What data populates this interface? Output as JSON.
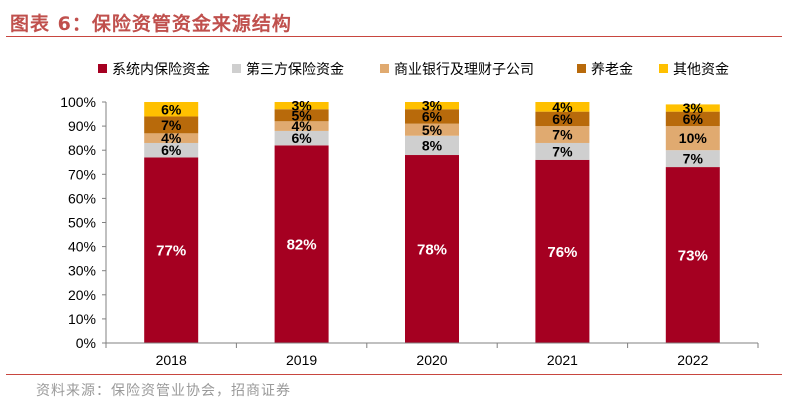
{
  "figure": {
    "title": "图表 6：保险资管资金来源结构",
    "source": "资料来源：保险资管业协会，招商证券"
  },
  "chart_data": {
    "type": "bar",
    "stacked": true,
    "categories": [
      "2018",
      "2019",
      "2020",
      "2021",
      "2022"
    ],
    "ylim": [
      0,
      100
    ],
    "yticks": [
      "0%",
      "10%",
      "20%",
      "30%",
      "40%",
      "50%",
      "60%",
      "70%",
      "80%",
      "90%",
      "100%"
    ],
    "legend_position": "top",
    "series": [
      {
        "name": "系统内保险资金",
        "color": "#a50021",
        "values": [
          77,
          82,
          78,
          76,
          73
        ],
        "labels": [
          "77%",
          "82%",
          "78%",
          "76%",
          "73%"
        ],
        "label_color": "#ffffff"
      },
      {
        "name": "第三方保险资金",
        "color": "#cfcfcf",
        "values": [
          6,
          6,
          8,
          7,
          7
        ],
        "labels": [
          "6%",
          "6%",
          "8%",
          "7%",
          "7%"
        ],
        "label_color": "#000000"
      },
      {
        "name": "商业银行及理财子公司",
        "color": "#e0aa70",
        "values": [
          4,
          4,
          5,
          7,
          10
        ],
        "labels": [
          "4%",
          "4%",
          "5%",
          "7%",
          "10%"
        ],
        "label_color": "#000000"
      },
      {
        "name": "养老金",
        "color": "#b86a0b",
        "values": [
          7,
          5,
          6,
          6,
          6
        ],
        "labels": [
          "7%",
          "5%",
          "6%",
          "6%",
          "6%"
        ],
        "label_color": "#000000"
      },
      {
        "name": "其他资金",
        "color": "#ffc000",
        "values": [
          6,
          3,
          3,
          4,
          3
        ],
        "labels": [
          "6%",
          "3%",
          "3%",
          "4%",
          "3%"
        ],
        "label_color": "#000000"
      }
    ]
  }
}
